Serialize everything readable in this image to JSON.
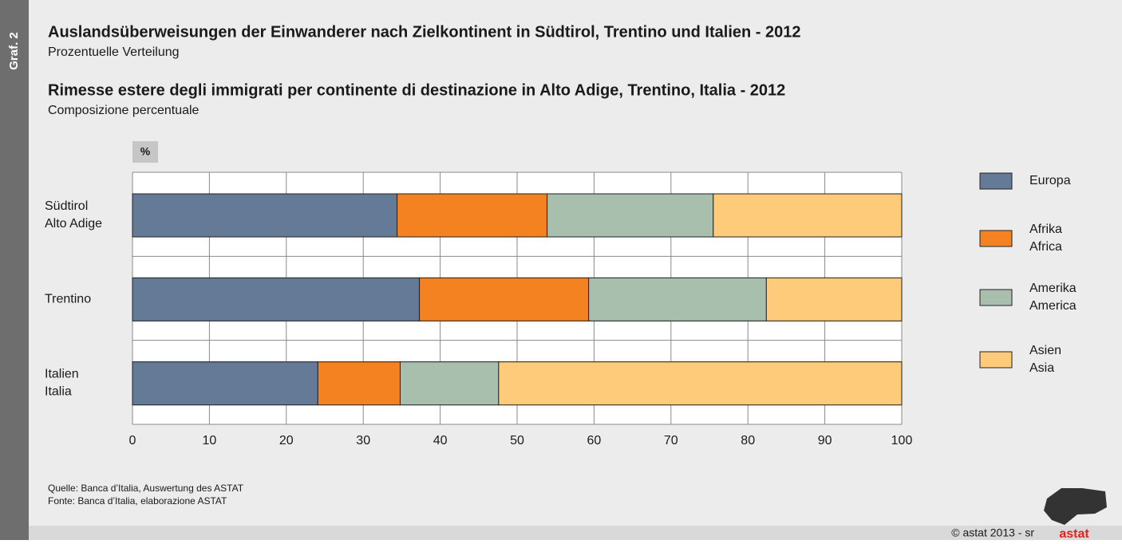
{
  "chart_data": {
    "type": "stacked_barh",
    "graf_label": "Graf. 2",
    "title": "Auslandsüberweisungen der Einwanderer nach Zielkontinent in Südtirol, Trentino und Italien - 2012",
    "subtitle": "Prozentuelle Verteilung",
    "title_it": "Rimesse estere degli immigrati per continente di destinazione in Alto Adige, Trentino, Italia - 2012",
    "subtitle_it": "Composizione percentuale",
    "unit_label": "%",
    "categories": [
      "Südtirol\nAlto Adige",
      "Trentino",
      "Italien\nItalia"
    ],
    "series": [
      {
        "name": "Europa",
        "color": "#647a97",
        "values": [
          34.4,
          37.3,
          24.1
        ]
      },
      {
        "name": "Afrika\nAfrica",
        "color": "#f48221",
        "values": [
          19.5,
          22.0,
          10.7
        ]
      },
      {
        "name": "Amerika\nAmerica",
        "color": "#a9bfae",
        "values": [
          21.6,
          23.1,
          12.8
        ]
      },
      {
        "name": "Asien\nAsia",
        "color": "#fecb7b",
        "values": [
          24.5,
          17.6,
          52.4
        ]
      }
    ],
    "xlim": [
      0,
      100
    ],
    "xticks": [
      0,
      10,
      20,
      30,
      40,
      50,
      60,
      70,
      80,
      90,
      100
    ],
    "grid": true,
    "legend": "right",
    "source": "Quelle: Banca d’Italia, Auswertung des ASTAT",
    "source_it": "Fonte: Banca d’Italia, elaborazione ASTAT",
    "copyright": "©  astat 2013 - sr",
    "logo": "astat"
  }
}
